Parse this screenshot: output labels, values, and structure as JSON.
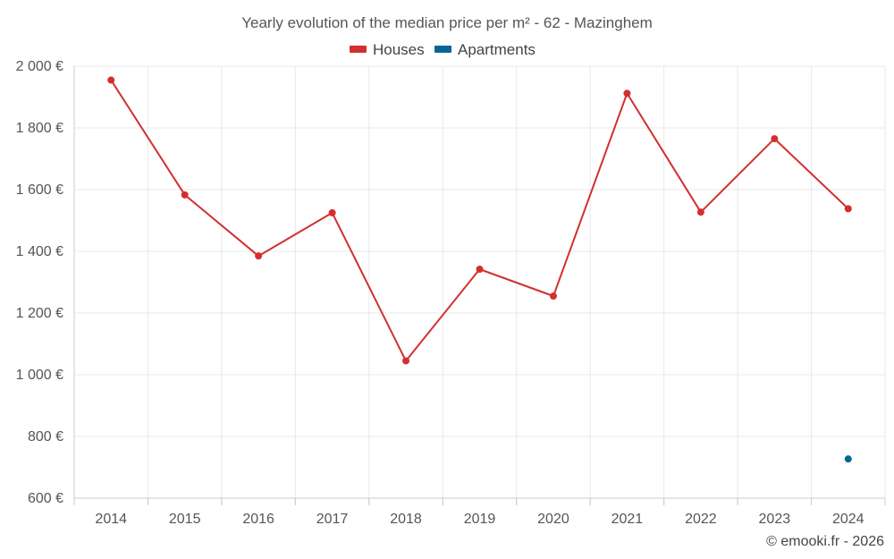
{
  "chart_data": {
    "type": "line",
    "title": "Yearly evolution of the median price per m² - 62 - Mazinghem",
    "categories": [
      "2014",
      "2015",
      "2016",
      "2017",
      "2018",
      "2019",
      "2020",
      "2021",
      "2022",
      "2023",
      "2024"
    ],
    "series": [
      {
        "name": "Houses",
        "color": "#d32f2f",
        "values": [
          1955,
          1583,
          1385,
          1525,
          1045,
          1342,
          1255,
          1912,
          1527,
          1765,
          1538
        ]
      },
      {
        "name": "Apartments",
        "color": "#0a6596",
        "values": [
          null,
          null,
          null,
          null,
          null,
          null,
          null,
          null,
          null,
          null,
          727
        ]
      }
    ],
    "ylim": [
      600,
      2000
    ],
    "yticks": [
      600,
      800,
      1000,
      1200,
      1400,
      1600,
      1800,
      2000
    ],
    "ytick_labels": [
      "600 €",
      "800 €",
      "1 000 €",
      "1 200 €",
      "1 400 €",
      "1 600 €",
      "1 800 €",
      "2 000 €"
    ],
    "xlabel": "",
    "ylabel": "",
    "grid": true,
    "legend_position": "top-center"
  },
  "credit": "© emooki.fr - 2026"
}
